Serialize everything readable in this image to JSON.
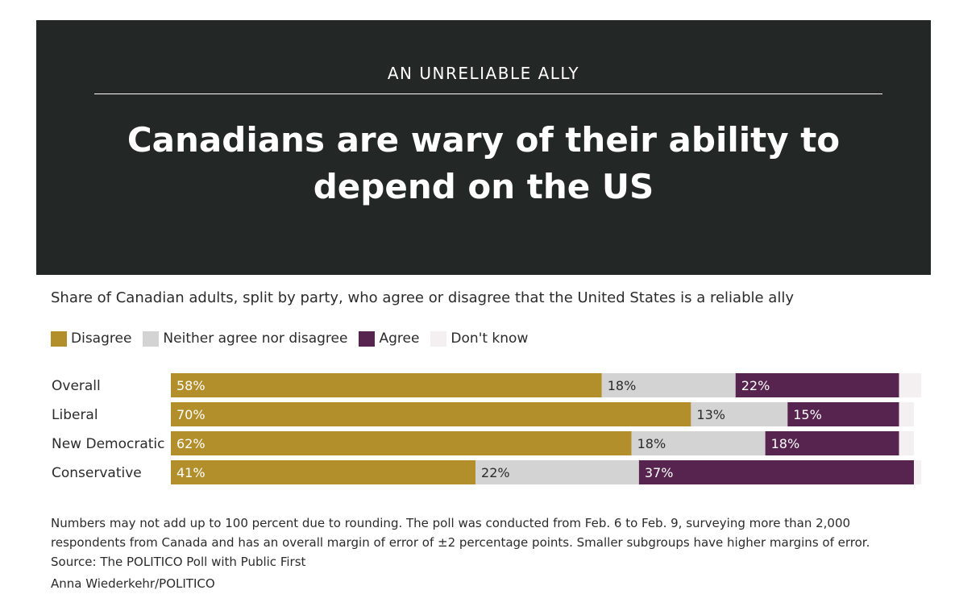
{
  "header": {
    "kicker": "AN UNRELIABLE ALLY",
    "title": "Canadians are wary of their ability to depend on the US"
  },
  "subtitle": "Share of Canadian adults, split by party, who agree or disagree that the United States is a reliable ally",
  "legend": [
    {
      "label": "Disagree",
      "color": "#b38f2c"
    },
    {
      "label": "Neither agree nor disagree",
      "color": "#d3d3d3"
    },
    {
      "label": "Agree",
      "color": "#56244f"
    },
    {
      "label": "Don't know",
      "color": "#f4eff0"
    }
  ],
  "chart_data": {
    "type": "bar",
    "orientation": "horizontal-stacked",
    "categories": [
      "Overall",
      "Liberal",
      "New Democratic",
      "Conservative"
    ],
    "series": [
      {
        "name": "Disagree",
        "color": "#b38f2c",
        "label_color": "#ffffff",
        "values": [
          58,
          70,
          62,
          41
        ],
        "labels": [
          "58%",
          "70%",
          "62%",
          "41%"
        ]
      },
      {
        "name": "Neither agree nor disagree",
        "color": "#d3d3d3",
        "label_color": "#2b2b2b",
        "values": [
          18,
          13,
          18,
          22
        ],
        "labels": [
          "18%",
          "13%",
          "18%",
          "22%"
        ]
      },
      {
        "name": "Agree",
        "color": "#56244f",
        "label_color": "#ffffff",
        "values": [
          22,
          15,
          18,
          37
        ],
        "labels": [
          "22%",
          "15%",
          "18%",
          "37%"
        ]
      },
      {
        "name": "Don't know",
        "color": "#f4eff0",
        "label_color": "#2b2b2b",
        "values": [
          3,
          2,
          2,
          1
        ],
        "labels": [
          "",
          "",
          "",
          ""
        ]
      }
    ],
    "xlim": [
      0,
      100
    ]
  },
  "notes": "Numbers may not add up to 100 percent due to rounding. The poll was conducted from Feb. 6 to Feb. 9, surveying more than 2,000 respondents from Canada and has an overall margin of error of ±2 percentage points. Smaller subgroups have higher margins of error.",
  "source": "Source: The POLITICO Poll with Public First",
  "credit": "Anna Wiederkehr/POLITICO"
}
